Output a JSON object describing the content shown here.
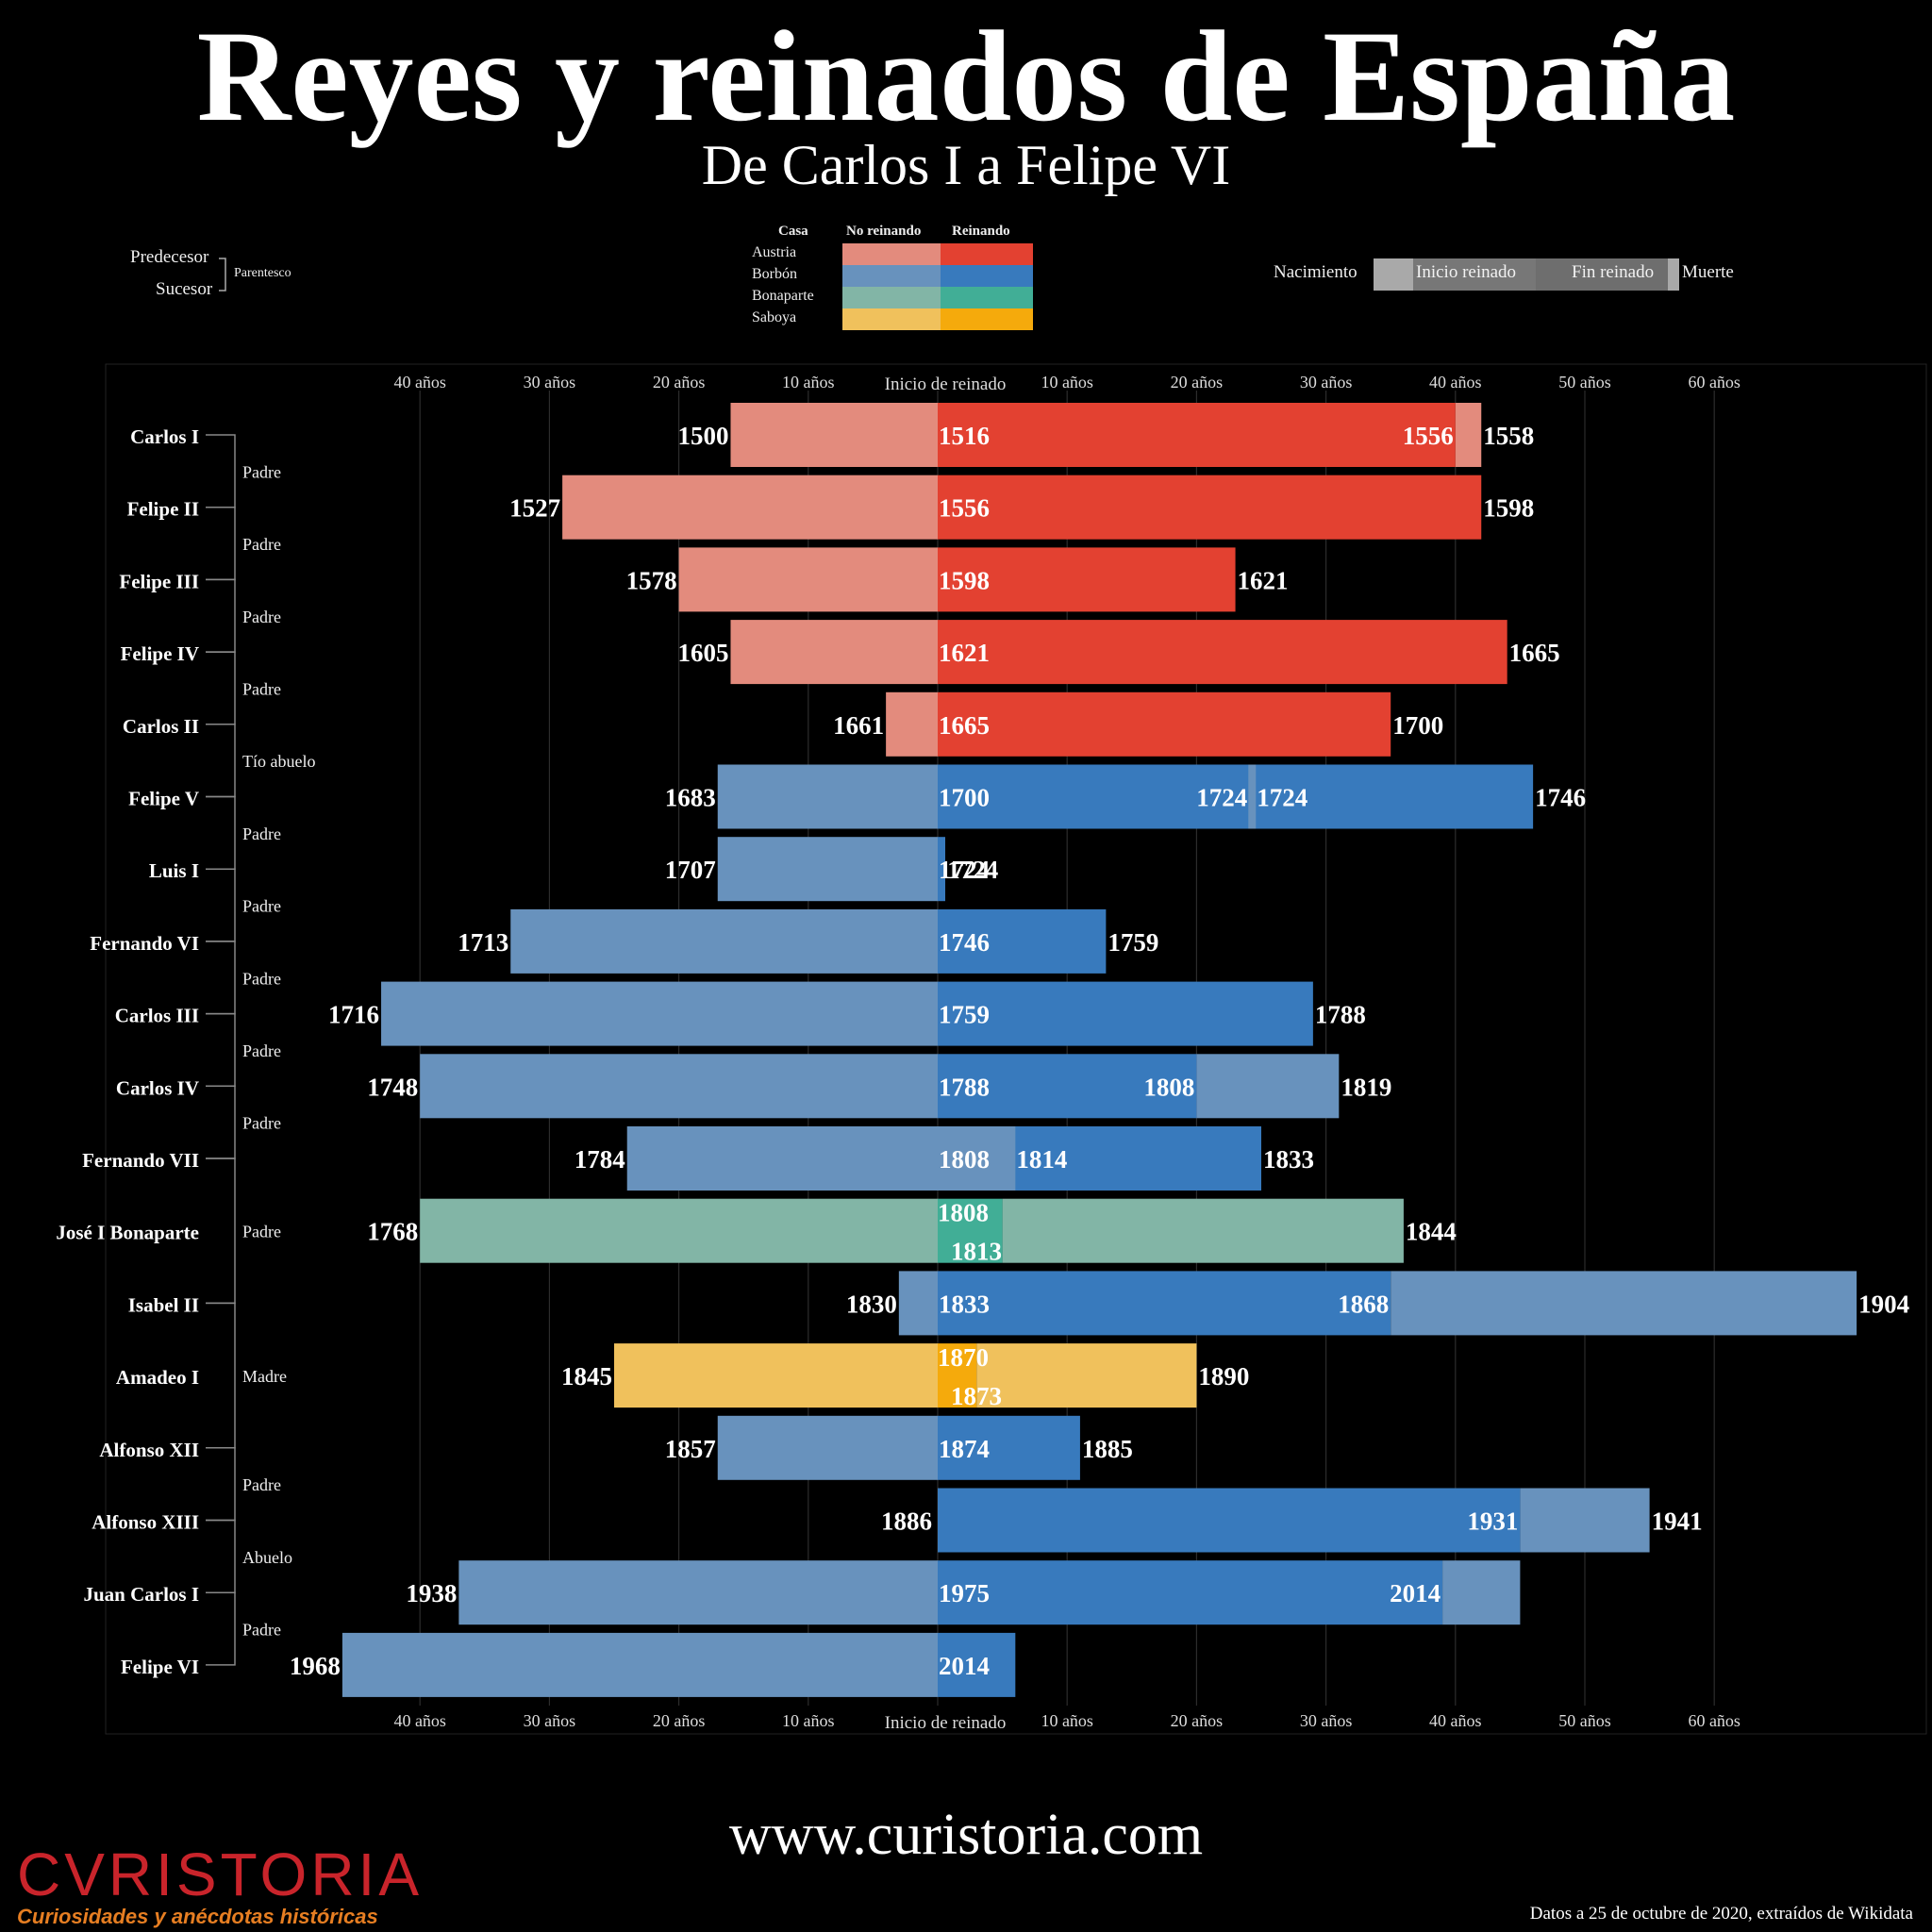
{
  "header": {
    "title": "Reyes y reinados de España",
    "subtitle": "De Carlos I a Felipe VI"
  },
  "legend": {
    "relation": {
      "predecessor": "Predecesor",
      "successor": "Sucesor",
      "kinship": "Parentesco"
    },
    "houses": {
      "heading": "Casa",
      "not_reigning": "No reinando",
      "reigning": "Reinando",
      "items": [
        {
          "name": "Austria",
          "light": "#e38b7d",
          "dark": "#e34131"
        },
        {
          "name": "Borbón",
          "light": "#6892bd",
          "dark": "#387abd"
        },
        {
          "name": "Bonaparte",
          "light": "#82b5a6",
          "dark": "#41ae96"
        },
        {
          "name": "Saboya",
          "light": "#f0c15c",
          "dark": "#f5aa0c"
        }
      ]
    },
    "timeline": {
      "birth": "Nacimiento",
      "reign_start": "Inicio reinado",
      "reign_end": "Fin reinado",
      "death": "Muerte"
    }
  },
  "footer": {
    "website": "www.curistoria.com",
    "credit": "Datos a 25 de octubre de 2020, extraídos de Wikidata",
    "logo_word": "CVRISTORIA",
    "logo_tagline": "Curiosidades y anécdotas históricas"
  },
  "chart_data": {
    "type": "bar",
    "title": "Reyes y reinados de España",
    "subtitle": "De Carlos I a Felipe VI",
    "xlabel": "Inicio de reinado",
    "x_unit": "años",
    "xlim": [
      -40,
      60
    ],
    "x_ticks_left": [
      "40 años",
      "30 años",
      "20 años",
      "10 años"
    ],
    "x_ticks_right": [
      "10 años",
      "20 años",
      "30 años",
      "40 años",
      "50 años",
      "60 años"
    ],
    "zero_label": "Inicio de reinado",
    "grid": true,
    "colors": {
      "Austria": {
        "light": "#e38b7d",
        "dark": "#e34131"
      },
      "Borbón": {
        "light": "#6892bd",
        "dark": "#387abd"
      },
      "Bonaparte": {
        "light": "#82b5a6",
        "dark": "#41ae96"
      },
      "Saboya": {
        "light": "#f0c15c",
        "dark": "#f5aa0c"
      }
    },
    "monarchs": [
      {
        "name": "Carlos I",
        "house": "Austria",
        "birth": 1500,
        "start": 1516,
        "end": 1556,
        "death": 1558,
        "relation_to_next": "Padre"
      },
      {
        "name": "Felipe II",
        "house": "Austria",
        "birth": 1527,
        "start": 1556,
        "end": 1598,
        "death": 1598,
        "relation_to_next": "Padre"
      },
      {
        "name": "Felipe III",
        "house": "Austria",
        "birth": 1578,
        "start": 1598,
        "end": 1621,
        "death": 1621,
        "relation_to_next": "Padre"
      },
      {
        "name": "Felipe IV",
        "house": "Austria",
        "birth": 1605,
        "start": 1621,
        "end": 1665,
        "death": 1665,
        "relation_to_next": "Padre"
      },
      {
        "name": "Carlos II",
        "house": "Austria",
        "birth": 1661,
        "start": 1665,
        "end": 1700,
        "death": 1700,
        "relation_to_next": "Tío abuelo"
      },
      {
        "name": "Felipe V",
        "house": "Borbón",
        "birth": 1683,
        "start": 1700,
        "end": 1746,
        "death": 1746,
        "interruption": [
          1724,
          1724
        ],
        "relation_to_next": "Padre"
      },
      {
        "name": "Luis I",
        "house": "Borbón",
        "birth": 1707,
        "start": 1724,
        "end": 1724,
        "death": 1724,
        "relation_to_next": "Padre"
      },
      {
        "name": "Fernando VI",
        "house": "Borbón",
        "birth": 1713,
        "start": 1746,
        "end": 1759,
        "death": 1759,
        "relation_to_next": "Padre"
      },
      {
        "name": "Carlos III",
        "house": "Borbón",
        "birth": 1716,
        "start": 1759,
        "end": 1788,
        "death": 1788,
        "relation_to_next": "Padre"
      },
      {
        "name": "Carlos IV",
        "house": "Borbón",
        "birth": 1748,
        "start": 1788,
        "end": 1808,
        "death": 1819,
        "relation_to_next": "Padre"
      },
      {
        "name": "Fernando VII",
        "house": "Borbón",
        "birth": 1784,
        "start": 1808,
        "end": 1833,
        "death": 1833,
        "interruption": [
          1808,
          1814
        ]
      },
      {
        "name": "José I Bonaparte",
        "house": "Bonaparte",
        "birth": 1768,
        "start": 1808,
        "end": 1813,
        "death": 1844
      },
      {
        "name": "Isabel II",
        "house": "Borbón",
        "birth": 1830,
        "start": 1833,
        "end": 1868,
        "death": 1904
      },
      {
        "name": "Amadeo I",
        "house": "Saboya",
        "birth": 1845,
        "start": 1870,
        "end": 1873,
        "death": 1890
      },
      {
        "name": "Alfonso XII",
        "house": "Borbón",
        "birth": 1857,
        "start": 1874,
        "end": 1885,
        "death": 1885,
        "relation_to_next": "Padre"
      },
      {
        "name": "Alfonso XIII",
        "house": "Borbón",
        "birth": 1886,
        "start": 1886,
        "end": 1931,
        "death": 1941,
        "relation_to_next": "Abuelo"
      },
      {
        "name": "Juan Carlos I",
        "house": "Borbón",
        "birth": 1938,
        "start": 1975,
        "end": 2014,
        "relation_to_next": "Padre"
      },
      {
        "name": "Felipe VI",
        "house": "Borbón",
        "birth": 1968,
        "start": 2014
      }
    ],
    "relations": [
      {
        "label": "Padre",
        "from": "Fernando VII",
        "to": "Isabel II"
      },
      {
        "label": "Madre",
        "from": "Isabel II",
        "to": "Alfonso XII"
      }
    ],
    "end_of_data": 2020
  }
}
